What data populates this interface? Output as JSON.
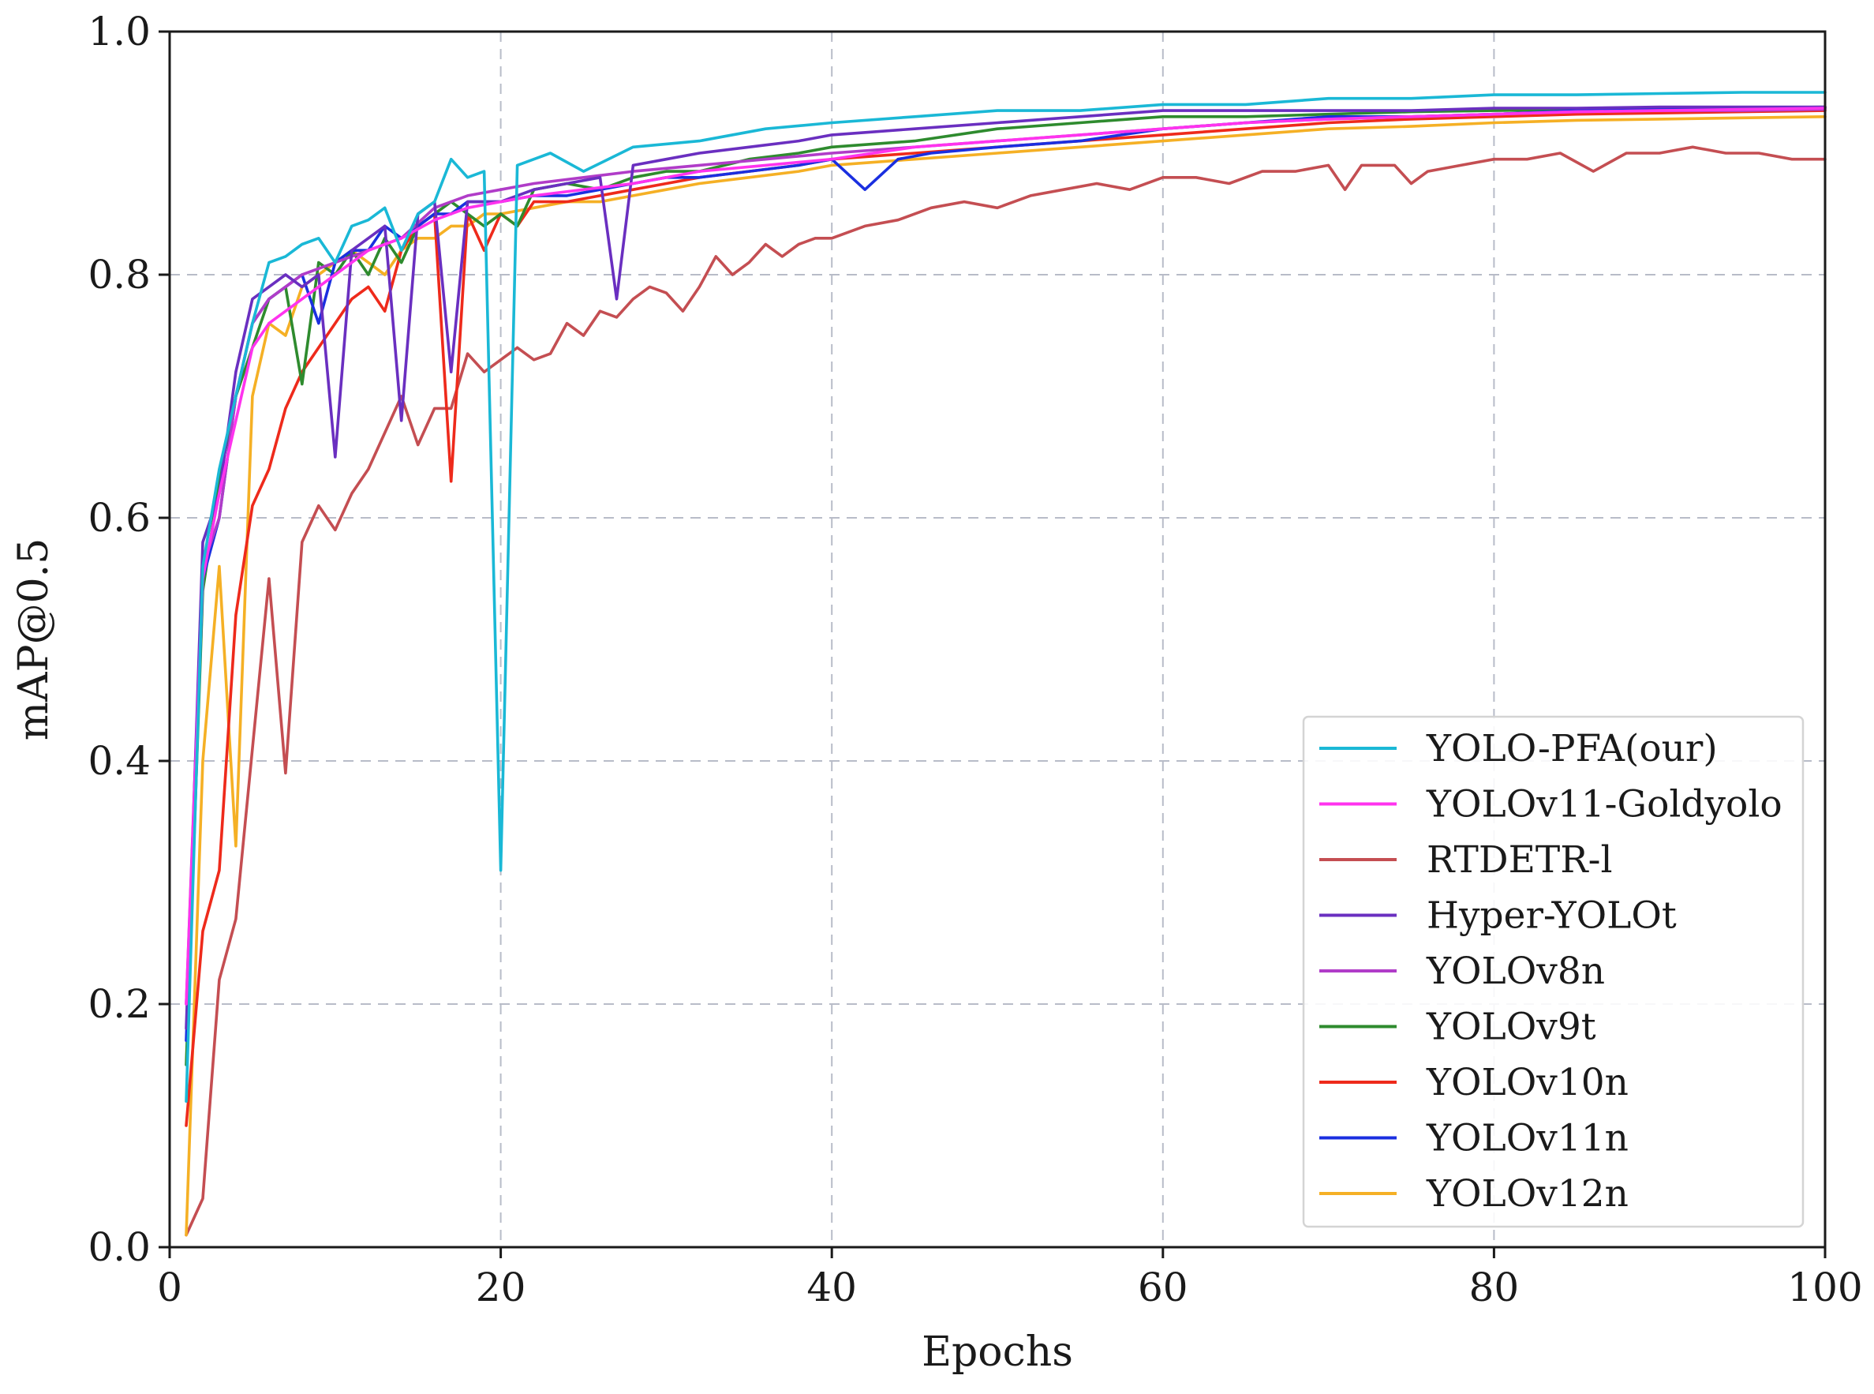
{
  "chart_data": {
    "type": "line",
    "title": "",
    "xlabel": "Epochs",
    "ylabel": "mAP@0.5",
    "xlim": [
      0,
      100
    ],
    "ylim": [
      0.0,
      1.0
    ],
    "x_ticks": [
      0,
      20,
      40,
      60,
      80,
      100
    ],
    "x_tick_labels": [
      "0",
      "20",
      "40",
      "60",
      "80",
      "100"
    ],
    "y_ticks": [
      0.0,
      0.2,
      0.4,
      0.6,
      0.8,
      1.0
    ],
    "y_tick_labels": [
      "0.0",
      "0.2",
      "0.4",
      "0.6",
      "0.8",
      "1.0"
    ],
    "grid": true,
    "legend_position": "lower-right",
    "series": [
      {
        "name": "YOLO-PFA(our)",
        "color": "#1ab8d6",
        "x": [
          1,
          2,
          3,
          4,
          5,
          6,
          7,
          8,
          9,
          10,
          11,
          12,
          13,
          14,
          15,
          16,
          17,
          18,
          19,
          20,
          21,
          22,
          23,
          25,
          28,
          32,
          36,
          40,
          45,
          50,
          55,
          60,
          65,
          70,
          75,
          80,
          85,
          90,
          95,
          100
        ],
        "values": [
          0.12,
          0.56,
          0.64,
          0.7,
          0.76,
          0.81,
          0.815,
          0.825,
          0.83,
          0.81,
          0.84,
          0.845,
          0.855,
          0.82,
          0.85,
          0.86,
          0.895,
          0.88,
          0.885,
          0.31,
          0.89,
          0.895,
          0.9,
          0.885,
          0.905,
          0.91,
          0.92,
          0.925,
          0.93,
          0.935,
          0.935,
          0.94,
          0.94,
          0.945,
          0.945,
          0.948,
          0.948,
          0.949,
          0.95,
          0.95
        ]
      },
      {
        "name": "YOLOv11-Goldyolo",
        "color": "#ff33ee",
        "x": [
          1,
          2,
          3,
          4,
          5,
          6,
          8,
          10,
          12,
          14,
          16,
          18,
          20,
          22,
          25,
          28,
          32,
          36,
          40,
          45,
          50,
          55,
          60,
          65,
          70,
          75,
          80,
          85,
          90,
          95,
          100
        ],
        "values": [
          0.2,
          0.55,
          0.62,
          0.68,
          0.74,
          0.76,
          0.78,
          0.8,
          0.82,
          0.83,
          0.845,
          0.855,
          0.86,
          0.865,
          0.87,
          0.875,
          0.885,
          0.89,
          0.895,
          0.905,
          0.91,
          0.915,
          0.92,
          0.925,
          0.928,
          0.93,
          0.932,
          0.934,
          0.935,
          0.936,
          0.937
        ]
      },
      {
        "name": "RTDETR-l",
        "color": "#c44e52",
        "x": [
          1,
          2,
          3,
          4,
          5,
          6,
          7,
          8,
          9,
          10,
          11,
          12,
          13,
          14,
          15,
          16,
          17,
          18,
          19,
          20,
          21,
          22,
          23,
          24,
          25,
          26,
          27,
          28,
          29,
          30,
          31,
          32,
          33,
          34,
          35,
          36,
          37,
          38,
          39,
          40,
          42,
          44,
          46,
          48,
          50,
          52,
          54,
          56,
          58,
          60,
          62,
          64,
          66,
          68,
          70,
          71,
          72,
          74,
          75,
          76,
          78,
          80,
          82,
          84,
          86,
          88,
          90,
          92,
          94,
          96,
          98,
          100
        ],
        "values": [
          0.01,
          0.04,
          0.22,
          0.27,
          0.41,
          0.55,
          0.39,
          0.58,
          0.61,
          0.59,
          0.62,
          0.64,
          0.67,
          0.7,
          0.66,
          0.69,
          0.69,
          0.735,
          0.72,
          0.73,
          0.74,
          0.73,
          0.735,
          0.76,
          0.75,
          0.77,
          0.765,
          0.78,
          0.79,
          0.785,
          0.77,
          0.79,
          0.815,
          0.8,
          0.81,
          0.825,
          0.815,
          0.825,
          0.83,
          0.83,
          0.84,
          0.845,
          0.855,
          0.86,
          0.855,
          0.865,
          0.87,
          0.875,
          0.87,
          0.88,
          0.88,
          0.875,
          0.885,
          0.885,
          0.89,
          0.87,
          0.89,
          0.89,
          0.875,
          0.885,
          0.89,
          0.895,
          0.895,
          0.9,
          0.885,
          0.9,
          0.9,
          0.905,
          0.9,
          0.9,
          0.895,
          0.895
        ]
      },
      {
        "name": "Hyper-YOLOt",
        "color": "#6a2fc0",
        "x": [
          1,
          2,
          3,
          4,
          5,
          6,
          7,
          8,
          9,
          10,
          11,
          12,
          13,
          14,
          15,
          16,
          17,
          18,
          19,
          20,
          22,
          24,
          26,
          27,
          28,
          30,
          32,
          35,
          38,
          40,
          45,
          50,
          55,
          60,
          65,
          70,
          75,
          80,
          85,
          90,
          95,
          100
        ],
        "values": [
          0.18,
          0.58,
          0.62,
          0.72,
          0.78,
          0.79,
          0.8,
          0.79,
          0.8,
          0.65,
          0.82,
          0.83,
          0.84,
          0.68,
          0.85,
          0.86,
          0.72,
          0.86,
          0.86,
          0.86,
          0.87,
          0.875,
          0.88,
          0.78,
          0.89,
          0.895,
          0.9,
          0.905,
          0.91,
          0.915,
          0.92,
          0.925,
          0.93,
          0.935,
          0.935,
          0.935,
          0.935,
          0.937,
          0.937,
          0.938,
          0.938,
          0.938
        ]
      },
      {
        "name": "YOLOv8n",
        "color": "#b03cc8",
        "x": [
          1,
          2,
          3,
          4,
          5,
          6,
          8,
          10,
          12,
          14,
          16,
          18,
          20,
          22,
          25,
          28,
          32,
          36,
          40,
          45,
          50,
          55,
          60,
          65,
          70,
          75,
          80,
          85,
          90,
          95,
          100
        ],
        "values": [
          0.2,
          0.56,
          0.6,
          0.7,
          0.76,
          0.78,
          0.8,
          0.81,
          0.82,
          0.83,
          0.855,
          0.865,
          0.87,
          0.875,
          0.88,
          0.885,
          0.89,
          0.895,
          0.9,
          0.905,
          0.91,
          0.915,
          0.92,
          0.925,
          0.928,
          0.93,
          0.932,
          0.934,
          0.935,
          0.935,
          0.936
        ]
      },
      {
        "name": "YOLOv9t",
        "color": "#2e8b2e",
        "x": [
          1,
          2,
          3,
          4,
          5,
          6,
          7,
          8,
          9,
          10,
          11,
          12,
          13,
          14,
          15,
          16,
          17,
          18,
          19,
          20,
          21,
          22,
          24,
          26,
          28,
          30,
          32,
          35,
          38,
          40,
          45,
          50,
          55,
          60,
          65,
          70,
          75,
          80,
          85,
          90,
          95,
          100
        ],
        "values": [
          0.15,
          0.54,
          0.63,
          0.7,
          0.74,
          0.78,
          0.79,
          0.71,
          0.81,
          0.8,
          0.82,
          0.8,
          0.83,
          0.81,
          0.84,
          0.85,
          0.86,
          0.85,
          0.84,
          0.85,
          0.84,
          0.87,
          0.875,
          0.87,
          0.88,
          0.885,
          0.885,
          0.895,
          0.9,
          0.905,
          0.91,
          0.92,
          0.925,
          0.93,
          0.93,
          0.932,
          0.934,
          0.935,
          0.936,
          0.937,
          0.937,
          0.938
        ]
      },
      {
        "name": "YOLOv10n",
        "color": "#ee2a1b",
        "x": [
          1,
          2,
          3,
          4,
          5,
          6,
          7,
          8,
          9,
          10,
          11,
          12,
          13,
          14,
          15,
          16,
          17,
          18,
          19,
          20,
          21,
          22,
          24,
          26,
          28,
          30,
          32,
          35,
          38,
          40,
          45,
          50,
          55,
          60,
          65,
          70,
          75,
          80,
          85,
          90,
          95,
          100
        ],
        "values": [
          0.1,
          0.26,
          0.31,
          0.52,
          0.61,
          0.64,
          0.69,
          0.72,
          0.74,
          0.76,
          0.78,
          0.79,
          0.77,
          0.82,
          0.84,
          0.85,
          0.63,
          0.85,
          0.82,
          0.85,
          0.84,
          0.86,
          0.86,
          0.865,
          0.87,
          0.875,
          0.88,
          0.885,
          0.89,
          0.895,
          0.9,
          0.905,
          0.91,
          0.915,
          0.92,
          0.925,
          0.928,
          0.93,
          0.932,
          0.933,
          0.934,
          0.935
        ]
      },
      {
        "name": "YOLOv11n",
        "color": "#1a2fe0",
        "x": [
          1,
          2,
          3,
          4,
          5,
          6,
          7,
          8,
          9,
          10,
          11,
          12,
          13,
          14,
          15,
          16,
          17,
          18,
          19,
          20,
          22,
          24,
          26,
          28,
          30,
          32,
          35,
          38,
          40,
          42,
          44,
          46,
          50,
          55,
          60,
          65,
          70,
          75,
          80,
          85,
          90,
          95,
          100
        ],
        "values": [
          0.17,
          0.55,
          0.6,
          0.7,
          0.76,
          0.78,
          0.79,
          0.8,
          0.76,
          0.81,
          0.82,
          0.82,
          0.84,
          0.83,
          0.84,
          0.85,
          0.85,
          0.86,
          0.86,
          0.86,
          0.865,
          0.865,
          0.87,
          0.875,
          0.88,
          0.88,
          0.885,
          0.89,
          0.895,
          0.87,
          0.895,
          0.9,
          0.905,
          0.91,
          0.92,
          0.925,
          0.93,
          0.93,
          0.932,
          0.935,
          0.936,
          0.937,
          0.937
        ]
      },
      {
        "name": "YOLOv12n",
        "color": "#f5b025",
        "x": [
          1,
          2,
          3,
          4,
          5,
          6,
          7,
          8,
          9,
          10,
          11,
          12,
          13,
          14,
          15,
          16,
          17,
          18,
          19,
          20,
          22,
          24,
          26,
          28,
          30,
          32,
          35,
          38,
          40,
          45,
          50,
          55,
          60,
          65,
          70,
          75,
          80,
          85,
          90,
          95,
          100
        ],
        "values": [
          0.01,
          0.4,
          0.56,
          0.33,
          0.7,
          0.76,
          0.75,
          0.79,
          0.8,
          0.81,
          0.82,
          0.81,
          0.8,
          0.82,
          0.83,
          0.83,
          0.84,
          0.84,
          0.85,
          0.85,
          0.855,
          0.86,
          0.86,
          0.865,
          0.87,
          0.875,
          0.88,
          0.885,
          0.89,
          0.895,
          0.9,
          0.905,
          0.91,
          0.915,
          0.92,
          0.922,
          0.925,
          0.927,
          0.928,
          0.929,
          0.93
        ]
      }
    ]
  }
}
